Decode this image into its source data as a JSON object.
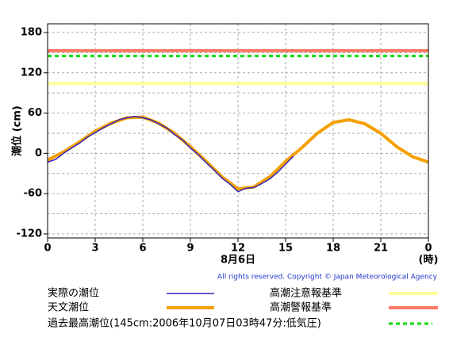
{
  "chart_data": {
    "type": "line",
    "ylabel": "潮位 (cm)",
    "xlabel": "8月6日",
    "xunit": "(時)",
    "copyright": "All rights reserved. Copyright © Japan Meteorological Agency",
    "xlim": [
      0,
      24
    ],
    "xticks": [
      0,
      3,
      6,
      9,
      12,
      15,
      18,
      21,
      {
        "value": 24,
        "label": "0"
      }
    ],
    "ylim": [
      -126,
      193
    ],
    "yticks": [
      -120,
      -60,
      0,
      60,
      120,
      180
    ],
    "yticks_minor": [
      -90,
      -30,
      30,
      90,
      150
    ],
    "grid": true,
    "series": [
      {
        "name": "実際の潮位",
        "color": "#3322bb",
        "x": [
          0,
          0.5,
          1,
          1.5,
          2,
          2.5,
          3,
          3.5,
          4,
          4.5,
          5,
          5.5,
          6,
          6.5,
          7,
          7.5,
          8,
          8.5,
          9,
          9.5,
          10,
          10.5,
          11,
          11.5,
          12,
          12.5,
          13,
          13.5,
          14,
          14.5,
          15,
          15.5
        ],
        "values": [
          -13,
          -9,
          0,
          8,
          15,
          24,
          31,
          38,
          44,
          50,
          53,
          55,
          53,
          50,
          44,
          38,
          28,
          20,
          8,
          -2,
          -14,
          -25,
          -37,
          -46,
          -57,
          -52,
          -51,
          -45,
          -38,
          -28,
          -16,
          -4
        ]
      },
      {
        "name": "天文潮位",
        "color": "#f5a000",
        "x": [
          0,
          1,
          2,
          3,
          4,
          5,
          6,
          7,
          8,
          9,
          10,
          11,
          12,
          13,
          14,
          15,
          16,
          17,
          18,
          19,
          20,
          21,
          22,
          23,
          24
        ],
        "values": [
          -10,
          2,
          17,
          33,
          45,
          53,
          54,
          45,
          30,
          10,
          -12,
          -35,
          -53,
          -50,
          -35,
          -12,
          8,
          30,
          46,
          50,
          44,
          30,
          10,
          -5,
          -13
        ]
      }
    ],
    "reference_lines": [
      {
        "name": "高潮注意報基準",
        "value": 104,
        "color": "#ffff99",
        "dashed": false
      },
      {
        "name": "高潮警報基準",
        "value": 153,
        "color": "#ff7766",
        "dashed": false
      },
      {
        "name": "過去最高潮位(145cm:2006年10月07日03時47分:低気圧)",
        "value": 145,
        "color": "#00dd00",
        "dashed": true
      }
    ]
  }
}
